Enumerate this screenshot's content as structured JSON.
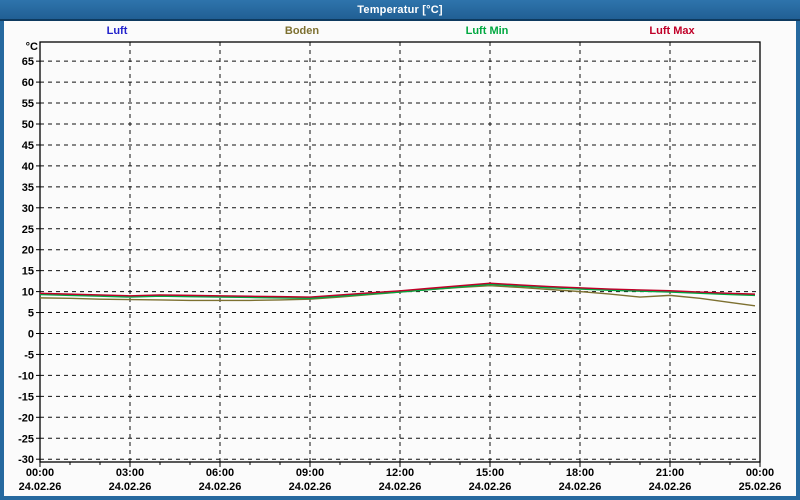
{
  "window": {
    "title": "Temperatur [°C]"
  },
  "colors": {
    "title_bar": "#26699F",
    "panel_bg": "#FBFBFB",
    "grid": "#111111",
    "frame": "#000000",
    "luft": "#2222CC",
    "boden": "#7D7030",
    "luft_min": "#00A840",
    "luft_max": "#C00028"
  },
  "legend": {
    "items": [
      {
        "label": "Luft",
        "color": "#2222CC"
      },
      {
        "label": "Boden",
        "color": "#7D7030"
      },
      {
        "label": "Luft Min",
        "color": "#00A840"
      },
      {
        "label": "Luft Max",
        "color": "#C00028"
      }
    ],
    "position": "top"
  },
  "chart_data": {
    "type": "line",
    "title": "Temperatur [°C]",
    "ylabel": "°C",
    "xlabel": "",
    "grid": true,
    "legend_position": "top",
    "y_min": -30,
    "y_max": 65,
    "y_step": 5,
    "y_tick_labels": [
      65,
      60,
      55,
      50,
      45,
      40,
      35,
      30,
      25,
      20,
      15,
      10,
      5,
      0,
      -5,
      -10,
      -15,
      -20,
      -25,
      -30
    ],
    "x_hours": [
      0,
      1,
      2,
      3,
      4,
      5,
      6,
      7,
      8,
      9,
      10,
      11,
      12,
      13,
      14,
      15,
      16,
      17,
      18,
      19,
      20,
      21,
      22,
      23,
      24
    ],
    "x_tick_labels": [
      {
        "time": "00:00",
        "date": "24.02.26"
      },
      {
        "time": "03:00",
        "date": "24.02.26"
      },
      {
        "time": "06:00",
        "date": "24.02.26"
      },
      {
        "time": "09:00",
        "date": "24.02.26"
      },
      {
        "time": "12:00",
        "date": "24.02.26"
      },
      {
        "time": "15:00",
        "date": "24.02.26"
      },
      {
        "time": "18:00",
        "date": "24.02.26"
      },
      {
        "time": "21:00",
        "date": "24.02.26"
      },
      {
        "time": "00:00",
        "date": "25.02.26"
      }
    ],
    "series": [
      {
        "name": "Luft",
        "color": "#2222CC",
        "values": [
          9.4,
          9.2,
          9.0,
          8.9,
          9.0,
          8.9,
          8.8,
          8.8,
          8.7,
          8.6,
          9.1,
          9.6,
          10.1,
          10.7,
          11.3,
          11.8,
          11.5,
          11.1,
          10.8,
          10.5,
          10.3,
          10.1,
          9.8,
          9.5,
          9.3
        ]
      },
      {
        "name": "Boden",
        "color": "#7D7030",
        "values": [
          8.5,
          8.4,
          8.2,
          8.1,
          8.0,
          7.9,
          7.9,
          7.9,
          8.0,
          8.2,
          8.7,
          9.3,
          9.9,
          10.5,
          11.0,
          11.4,
          11.0,
          10.5,
          10.0,
          9.4,
          8.7,
          9.1,
          8.4,
          7.4,
          6.6
        ]
      },
      {
        "name": "Luft Min",
        "color": "#00A840",
        "values": [
          9.3,
          9.1,
          8.9,
          8.7,
          8.9,
          8.8,
          8.7,
          8.6,
          8.5,
          8.4,
          8.9,
          9.4,
          9.9,
          10.5,
          11.1,
          11.7,
          11.3,
          10.9,
          10.6,
          10.3,
          10.1,
          9.9,
          9.6,
          9.3,
          9.1
        ]
      },
      {
        "name": "Luft Max",
        "color": "#C00028",
        "values": [
          9.6,
          9.4,
          9.2,
          9.0,
          9.2,
          9.1,
          9.0,
          8.9,
          8.8,
          8.7,
          9.2,
          9.7,
          10.2,
          10.8,
          11.4,
          12.0,
          11.6,
          11.2,
          10.9,
          10.6,
          10.4,
          10.2,
          9.9,
          9.6,
          9.4
        ]
      }
    ]
  }
}
